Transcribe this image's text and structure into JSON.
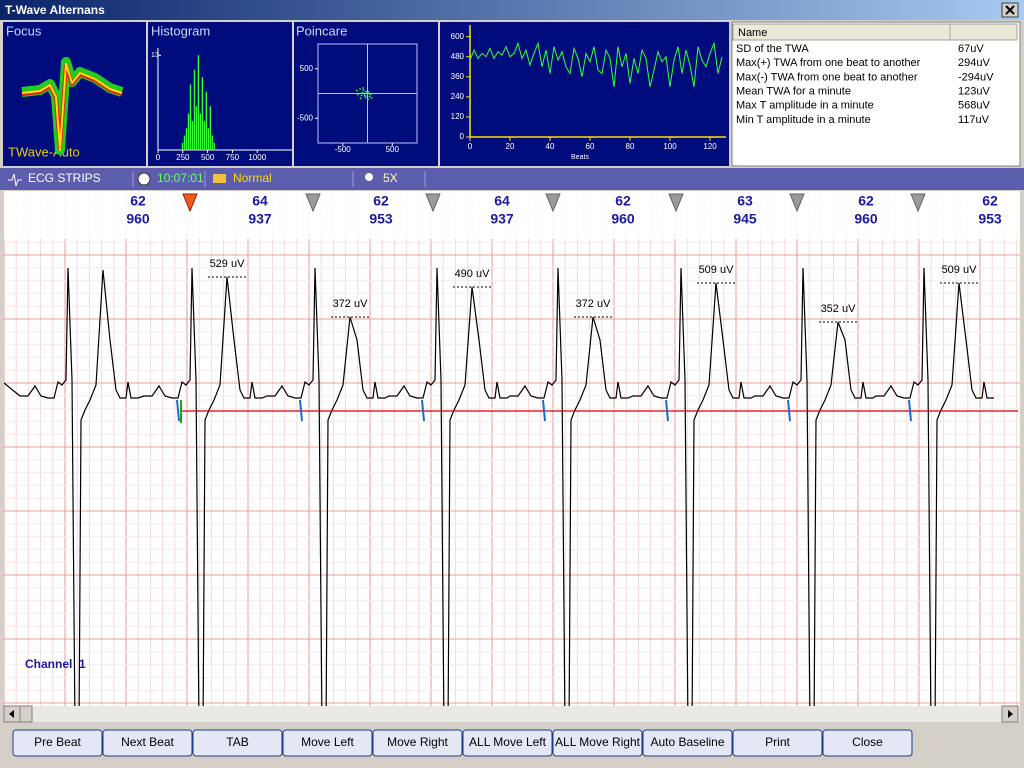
{
  "window": {
    "title": "T-Wave Alternans"
  },
  "focus": {
    "title": "Focus",
    "label": "TWave-Auto"
  },
  "histogram": {
    "type": "bar",
    "title": "Histogram",
    "bins": [
      240,
      260,
      280,
      300,
      320,
      340,
      360,
      380,
      400,
      420,
      440,
      460,
      480,
      500,
      520,
      540,
      560,
      580
    ],
    "counts": [
      1,
      2,
      3,
      5,
      9,
      4,
      11,
      6,
      13,
      5,
      10,
      4,
      8,
      3,
      6,
      2,
      1
    ],
    "xlim": [
      0,
      1350
    ],
    "xticks": [
      0,
      250,
      500,
      750,
      1000
    ],
    "ylim": [
      0,
      14
    ],
    "yticks": [
      13
    ],
    "color": "#33ff33"
  },
  "poincare": {
    "type": "scatter",
    "title": "Poincare",
    "x": [
      -220,
      -150,
      -100,
      -60,
      -30,
      0,
      40,
      -180,
      -120,
      -80,
      -40,
      20,
      60,
      -140,
      -90,
      -50,
      10,
      -200,
      -10,
      80
    ],
    "y": [
      60,
      90,
      20,
      -30,
      40,
      -10,
      -60,
      0,
      -40,
      70,
      -80,
      30,
      -20,
      -100,
      110,
      -50,
      -120,
      -20,
      10,
      -90
    ],
    "xlim": [
      -1000,
      1000
    ],
    "xticks": [
      -500,
      500
    ],
    "ylim": [
      -1000,
      1000
    ],
    "yticks": [
      500,
      -500
    ],
    "color": "#33ff33"
  },
  "trend": {
    "type": "line",
    "xlabel": "Beats",
    "x": [
      0,
      2,
      4,
      6,
      8,
      10,
      12,
      14,
      16,
      18,
      20,
      22,
      24,
      26,
      28,
      30,
      32,
      34,
      36,
      38,
      40,
      42,
      44,
      46,
      48,
      50,
      52,
      54,
      56,
      58,
      60,
      62,
      64,
      66,
      68,
      70,
      72,
      74,
      76,
      78,
      80,
      82,
      84,
      86,
      88,
      90,
      92,
      94,
      96,
      98,
      100,
      102,
      104,
      106,
      108,
      110,
      112,
      114,
      116,
      118,
      120,
      122,
      124,
      126
    ],
    "values": [
      460,
      520,
      470,
      500,
      480,
      530,
      470,
      510,
      490,
      540,
      480,
      500,
      560,
      470,
      520,
      430,
      500,
      560,
      420,
      520,
      380,
      540,
      460,
      510,
      420,
      380,
      530,
      470,
      360,
      500,
      450,
      540,
      400,
      380,
      520,
      470,
      300,
      540,
      420,
      500,
      320,
      470,
      380,
      520,
      470,
      300,
      400,
      510,
      450,
      480,
      300,
      460,
      540,
      380,
      520,
      430,
      300,
      540,
      460,
      420,
      500,
      560,
      380,
      480
    ],
    "xlim": [
      0,
      128
    ],
    "xticks": [
      0,
      20,
      40,
      60,
      80,
      100,
      120
    ],
    "ylim": [
      0,
      670
    ],
    "yticks": [
      0,
      120,
      240,
      360,
      480,
      600
    ],
    "color": "#33ff33"
  },
  "table": {
    "header": "Name",
    "rows": [
      [
        "SD of the TWA",
        "67uV"
      ],
      [
        "Max(+) TWA from one beat to another",
        "294uV"
      ],
      [
        "Max(-) TWA from one beat to another",
        "-294uV"
      ],
      [
        "Mean TWA for a minute",
        "123uV"
      ],
      [
        "Max T amplitude in a minute",
        "568uV"
      ],
      [
        "Min T amplitude in a minute",
        "117uV"
      ]
    ]
  },
  "toolbar": {
    "strips": "ECG STRIPS",
    "time": "10:07:01",
    "mode": "Normal",
    "zoom": "5X"
  },
  "strip": {
    "beats": [
      {
        "hr": 62,
        "rr": 960
      },
      {
        "hr": 64,
        "rr": 937
      },
      {
        "hr": 62,
        "rr": 953
      },
      {
        "hr": 64,
        "rr": 937
      },
      {
        "hr": 62,
        "rr": 960
      },
      {
        "hr": 63,
        "rr": 945
      },
      {
        "hr": 62,
        "rr": 960
      },
      {
        "hr": 62,
        "rr": 953
      }
    ],
    "amplitudes": [
      "529 uV",
      "372 uV",
      "490 uV",
      "372 uV",
      "509 uV",
      "352 uV",
      "509 uV"
    ],
    "channel": "Channel  1"
  },
  "buttons": [
    "Pre Beat",
    "Next Beat",
    "TAB",
    "Move Left",
    "Move Right",
    "ALL Move Left",
    "ALL Move Right",
    "Auto Baseline",
    "Print",
    "Close"
  ]
}
